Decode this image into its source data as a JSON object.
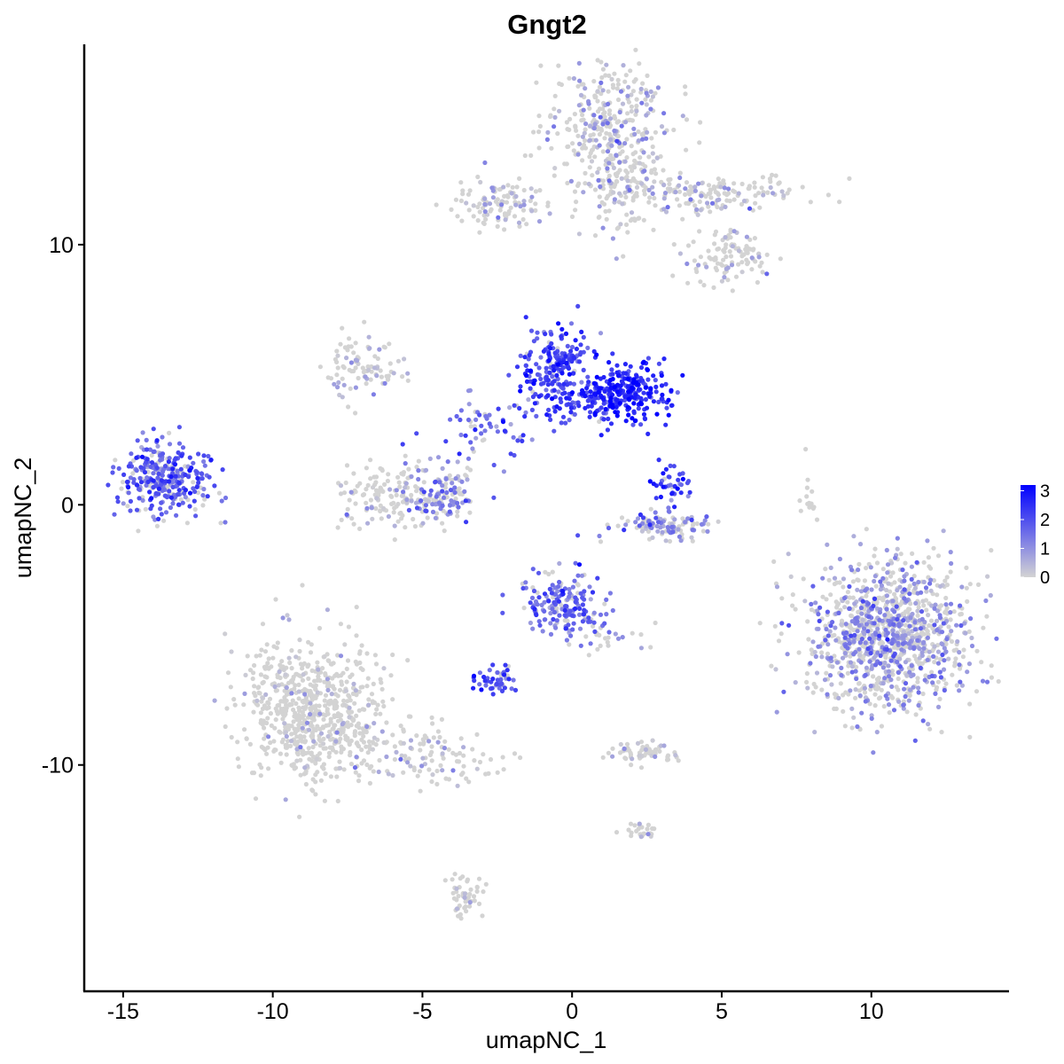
{
  "chart_data": {
    "type": "scatter",
    "title": "Gngt2",
    "xlabel": "umapNC_1",
    "ylabel": "umapNC_2",
    "xlim": [
      -16.3,
      14.6
    ],
    "ylim": [
      -18.7,
      17.7
    ],
    "x_ticks": [
      -15,
      -10,
      -5,
      0,
      5,
      10
    ],
    "y_ticks": [
      -10,
      0,
      10
    ],
    "x_tick_labels": [
      "-15",
      "-10",
      "-5",
      "0",
      "5",
      "10"
    ],
    "y_tick_labels": [
      "-10",
      "0",
      "10"
    ],
    "color_scale": {
      "label_values": [
        3,
        2,
        1,
        0
      ],
      "labels": [
        "3",
        "2",
        "1",
        "0"
      ],
      "min": 0,
      "max": 3.2,
      "low_color": "#d3d3d3",
      "high_color": "#0000ff"
    },
    "legend_position": "right",
    "grid": false,
    "clusters": [
      {
        "name": "top-right-head",
        "cx": 1.2,
        "cy": 14.8,
        "sx": 1.1,
        "sy": 1.2,
        "n": 320,
        "expr": 0.55
      },
      {
        "name": "top-right-body",
        "cx": 1.7,
        "cy": 12.3,
        "sx": 0.7,
        "sy": 1.0,
        "n": 120,
        "expr": 0.4
      },
      {
        "name": "top-right-arm",
        "cx": 4.6,
        "cy": 11.9,
        "sx": 1.5,
        "sy": 0.4,
        "n": 160,
        "expr": 0.35
      },
      {
        "name": "top-right-tail",
        "cx": 5.3,
        "cy": 9.6,
        "sx": 0.9,
        "sy": 0.6,
        "n": 110,
        "expr": 0.3
      },
      {
        "name": "top-left-arm",
        "cx": -2.4,
        "cy": 11.6,
        "sx": 0.8,
        "sy": 0.5,
        "n": 110,
        "expr": 0.5
      },
      {
        "name": "left-cluster",
        "cx": -13.6,
        "cy": 1.0,
        "sx": 0.8,
        "sy": 0.75,
        "n": 320,
        "expr": 1.7
      },
      {
        "name": "center-left-top",
        "cx": -7.0,
        "cy": 5.3,
        "sx": 0.6,
        "sy": 0.6,
        "n": 90,
        "expr": 0.4
      },
      {
        "name": "center-left-lower",
        "cx": -6.0,
        "cy": 0.4,
        "sx": 0.9,
        "sy": 0.6,
        "n": 150,
        "expr": 0.3
      },
      {
        "name": "center-left-right",
        "cx": -4.2,
        "cy": 0.4,
        "sx": 0.6,
        "sy": 0.6,
        "n": 110,
        "expr": 1.2
      },
      {
        "name": "center-bright-left",
        "cx": -0.6,
        "cy": 5.3,
        "sx": 0.6,
        "sy": 0.8,
        "n": 200,
        "expr": 2.1
      },
      {
        "name": "center-bright-right",
        "cx": 1.9,
        "cy": 4.3,
        "sx": 0.7,
        "sy": 0.55,
        "n": 230,
        "expr": 2.6
      },
      {
        "name": "center-bright-bridge",
        "cx": 0.6,
        "cy": 4.0,
        "sx": 0.8,
        "sy": 0.4,
        "n": 90,
        "expr": 2.2
      },
      {
        "name": "center-stream",
        "cx": -2.8,
        "cy": 3.0,
        "sx": 1.1,
        "sy": 0.7,
        "n": 70,
        "expr": 1.6
      },
      {
        "name": "center-right-blob",
        "cx": 3.3,
        "cy": 0.8,
        "sx": 0.3,
        "sy": 0.4,
        "n": 40,
        "expr": 2.3
      },
      {
        "name": "center-right-arc",
        "cx": 3.1,
        "cy": -0.8,
        "sx": 0.9,
        "sy": 0.25,
        "n": 110,
        "expr": 1.1
      },
      {
        "name": "right-big",
        "cx": 10.6,
        "cy": -5.0,
        "sx": 1.35,
        "sy": 1.45,
        "n": 1100,
        "expr": 0.9
      },
      {
        "name": "middle-lower-head",
        "cx": -0.5,
        "cy": -3.8,
        "sx": 0.6,
        "sy": 0.55,
        "n": 170,
        "expr": 1.6
      },
      {
        "name": "middle-lower-tail",
        "cx": 0.9,
        "cy": -4.8,
        "sx": 0.8,
        "sy": 0.4,
        "n": 40,
        "expr": 1.2
      },
      {
        "name": "middle-lower-blob",
        "cx": -2.5,
        "cy": -6.8,
        "sx": 0.4,
        "sy": 0.25,
        "n": 50,
        "expr": 2.0
      },
      {
        "name": "bottom-left-big",
        "cx": -8.5,
        "cy": -8.0,
        "sx": 1.2,
        "sy": 1.3,
        "n": 700,
        "expr": 0.08
      },
      {
        "name": "bottom-left-stream",
        "cx": -5.0,
        "cy": -9.7,
        "sx": 1.3,
        "sy": 0.5,
        "n": 110,
        "expr": 0.25
      },
      {
        "name": "bottom-left-tail",
        "cx": -3.6,
        "cy": -14.9,
        "sx": 0.3,
        "sy": 0.5,
        "n": 50,
        "expr": 0.15
      },
      {
        "name": "bottom-center-blob",
        "cx": 2.4,
        "cy": -9.5,
        "sx": 0.6,
        "sy": 0.2,
        "n": 60,
        "expr": 0.15
      },
      {
        "name": "bottom-center-small",
        "cx": 2.3,
        "cy": -12.5,
        "sx": 0.3,
        "sy": 0.15,
        "n": 25,
        "expr": 0.1
      },
      {
        "name": "far-right-thin",
        "cx": 7.9,
        "cy": 0.2,
        "sx": 0.15,
        "sy": 0.6,
        "n": 15,
        "expr": 0.05
      }
    ]
  }
}
